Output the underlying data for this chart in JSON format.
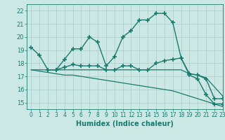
{
  "title": "",
  "xlabel": "Humidex (Indice chaleur)",
  "xlim": [
    -0.5,
    23
  ],
  "ylim": [
    14.5,
    22.5
  ],
  "xticks": [
    0,
    1,
    2,
    3,
    4,
    5,
    6,
    7,
    8,
    9,
    10,
    11,
    12,
    13,
    14,
    15,
    16,
    17,
    18,
    19,
    20,
    21,
    22,
    23
  ],
  "yticks": [
    15,
    16,
    17,
    18,
    19,
    20,
    21,
    22
  ],
  "bg_color": "#cce8e4",
  "grid_color": "#aacccc",
  "line_color": "#1a7a6e",
  "lines": [
    {
      "x": [
        0,
        1,
        2,
        3,
        4,
        5,
        6,
        7,
        8,
        9,
        10,
        11,
        12,
        13,
        14,
        15,
        16,
        17,
        18,
        19,
        20,
        21,
        22,
        23
      ],
      "y": [
        19.2,
        18.6,
        17.5,
        17.5,
        18.3,
        19.1,
        19.1,
        20.0,
        19.6,
        17.8,
        18.5,
        20.0,
        20.5,
        21.3,
        21.3,
        21.8,
        21.8,
        21.1,
        18.4,
        17.1,
        16.8,
        15.6,
        14.9,
        14.9
      ],
      "marker": "+",
      "markersize": 4,
      "lw": 1.0
    },
    {
      "x": [
        2,
        3,
        4,
        5,
        6,
        7,
        8,
        9,
        10,
        11,
        12,
        13,
        14,
        15,
        16,
        17,
        18,
        19,
        20,
        21,
        22,
        23
      ],
      "y": [
        17.5,
        17.5,
        17.7,
        17.9,
        17.8,
        17.8,
        17.8,
        17.5,
        17.5,
        17.8,
        17.8,
        17.5,
        17.5,
        18.0,
        18.2,
        18.3,
        18.4,
        17.2,
        17.1,
        16.8,
        15.3,
        15.3
      ],
      "marker": "+",
      "markersize": 4,
      "lw": 1.0
    },
    {
      "x": [
        0,
        1,
        2,
        3,
        4,
        5,
        6,
        7,
        8,
        9,
        10,
        11,
        12,
        13,
        14,
        15,
        16,
        17,
        18,
        19,
        20,
        21,
        22,
        23
      ],
      "y": [
        17.5,
        17.5,
        17.5,
        17.5,
        17.5,
        17.5,
        17.5,
        17.5,
        17.5,
        17.5,
        17.5,
        17.5,
        17.5,
        17.5,
        17.5,
        17.5,
        17.5,
        17.5,
        17.5,
        17.2,
        17.1,
        16.9,
        16.2,
        15.5
      ],
      "marker": null,
      "markersize": 0,
      "lw": 0.9
    },
    {
      "x": [
        0,
        1,
        2,
        3,
        4,
        5,
        6,
        7,
        8,
        9,
        10,
        11,
        12,
        13,
        14,
        15,
        16,
        17,
        18,
        19,
        20,
        21,
        22,
        23
      ],
      "y": [
        17.5,
        17.4,
        17.3,
        17.2,
        17.1,
        17.1,
        17.0,
        16.9,
        16.8,
        16.7,
        16.6,
        16.5,
        16.4,
        16.3,
        16.2,
        16.1,
        16.0,
        15.9,
        15.7,
        15.5,
        15.3,
        15.1,
        14.9,
        14.7
      ],
      "marker": null,
      "markersize": 0,
      "lw": 0.9
    }
  ]
}
